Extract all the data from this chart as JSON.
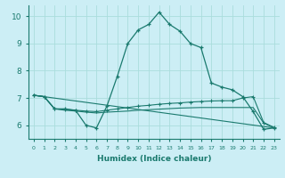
{
  "xlabel": "Humidex (Indice chaleur)",
  "background_color": "#cceef5",
  "grid_color": "#aadddd",
  "line_color": "#1a7a6e",
  "xlim": [
    -0.5,
    23.5
  ],
  "ylim": [
    5.5,
    10.4
  ],
  "xticks": [
    0,
    1,
    2,
    3,
    4,
    5,
    6,
    7,
    8,
    9,
    10,
    11,
    12,
    13,
    14,
    15,
    16,
    17,
    18,
    19,
    20,
    21,
    22,
    23
  ],
  "yticks": [
    6,
    7,
    8,
    9,
    10
  ],
  "line1_x": [
    0,
    1,
    2,
    3,
    4,
    5,
    6,
    7,
    8,
    9,
    10,
    11,
    12,
    13,
    14,
    15,
    16,
    17,
    18,
    19,
    20,
    21,
    22,
    23
  ],
  "line1_y": [
    7.1,
    7.05,
    6.6,
    6.6,
    6.55,
    6.0,
    5.9,
    6.7,
    7.8,
    9.0,
    9.5,
    9.7,
    10.15,
    9.7,
    9.45,
    9.0,
    8.85,
    7.55,
    7.4,
    7.3,
    7.05,
    6.5,
    5.85,
    5.9
  ],
  "line2_x": [
    0,
    1,
    2,
    3,
    4,
    5,
    6,
    7,
    8,
    9,
    10,
    11,
    12,
    13,
    14,
    15,
    16,
    17,
    18,
    19,
    20,
    21,
    22,
    23
  ],
  "line2_y": [
    7.1,
    7.05,
    6.6,
    6.58,
    6.55,
    6.52,
    6.5,
    6.55,
    6.6,
    6.65,
    6.7,
    6.73,
    6.77,
    6.8,
    6.82,
    6.85,
    6.87,
    6.89,
    6.9,
    6.9,
    7.0,
    7.05,
    6.1,
    5.92
  ],
  "line3_x": [
    0,
    1,
    2,
    3,
    4,
    5,
    6,
    7,
    8,
    9,
    10,
    11,
    12,
    13,
    14,
    15,
    16,
    17,
    18,
    19,
    20,
    21,
    22,
    23
  ],
  "line3_y": [
    7.1,
    7.05,
    6.6,
    6.55,
    6.52,
    6.48,
    6.45,
    6.48,
    6.5,
    6.52,
    6.55,
    6.57,
    6.59,
    6.61,
    6.63,
    6.64,
    6.65,
    6.65,
    6.65,
    6.65,
    6.65,
    6.65,
    6.08,
    5.9
  ],
  "line4_x": [
    0,
    23
  ],
  "line4_y": [
    7.1,
    5.9
  ]
}
